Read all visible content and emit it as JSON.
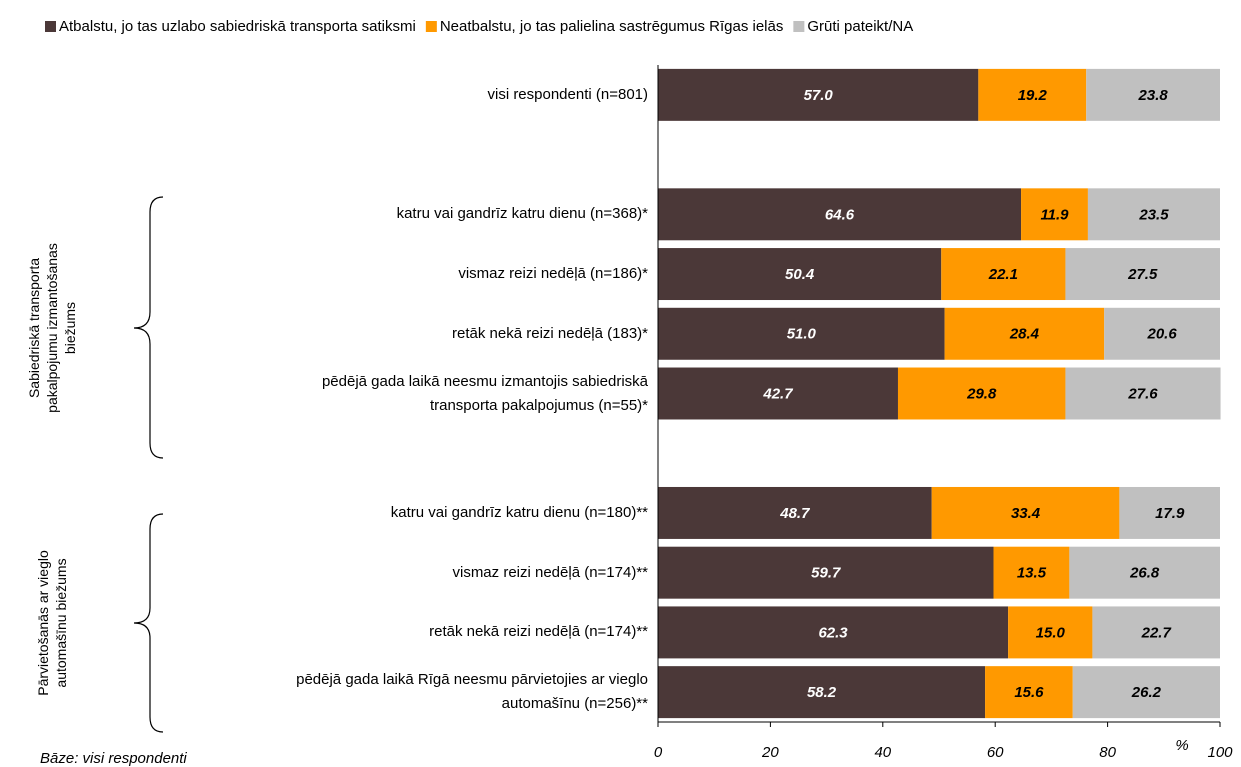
{
  "chart_data": {
    "type": "stacked_barh",
    "categories": [
      "visi respondenti (n=801)",
      null,
      "katru vai gandrīz katru dienu (n=368)*",
      "vismaz reizi nedēļā (n=186)*",
      "retāk nekā reizi nedēļā (183)*",
      "pēdējā gada laikā neesmu izmantojis sabiedriskā\ntransporta pakalpojumus (n=55)*",
      null,
      "katru vai gandrīz katru dienu (n=180)**",
      "vismaz reizi nedēļā (n=174)**",
      "retāk nekā reizi nedēļā (n=174)**",
      "pēdējā gada laikā Rīgā neesmu pārvietojies ar vieglo\nautomašīnu (n=256)**"
    ],
    "groups": [
      "Sabiedriskā transporta\npakalpojumu izmantošanas\nbiežums",
      "Pārvietošanās ar vieglo\nautomašīnu biežums"
    ],
    "series": [
      {
        "name": "Atbalstu, jo tas uzlabo sabiedriskā transporta satiksmi",
        "color": "#4b3838",
        "label_color": "#ffffff",
        "values": [
          57.0,
          null,
          64.6,
          50.4,
          51.0,
          42.7,
          null,
          48.7,
          59.7,
          62.3,
          58.2
        ],
        "value_labels": [
          "57.0",
          null,
          "64.6",
          "50.4",
          "51.0",
          "42.7",
          null,
          "48.7",
          "59.7",
          "62.3",
          "58.2"
        ]
      },
      {
        "name": "Neatbalstu, jo tas palielina sastrēgumus Rīgas ielās",
        "color": "#ff9900",
        "label_color": "#000000",
        "values": [
          19.2,
          null,
          11.9,
          22.1,
          28.4,
          29.8,
          null,
          33.4,
          13.5,
          15.0,
          15.6
        ],
        "value_labels": [
          "19.2",
          null,
          "11.9",
          "22.1",
          "28.4",
          "29.8",
          null,
          "33.4",
          "13.5",
          "15.0",
          "15.6"
        ]
      },
      {
        "name": "Grūti pateikt/NA",
        "color": "#c0c0c0",
        "label_color": "#000000",
        "values": [
          23.8,
          null,
          23.5,
          27.5,
          20.6,
          27.6,
          null,
          17.9,
          26.8,
          22.7,
          26.2
        ],
        "value_labels": [
          "23.8",
          null,
          "23.5",
          "27.5",
          "20.6",
          "27.6",
          null,
          "17.9",
          "26.8",
          "22.7",
          "26.2"
        ]
      }
    ],
    "xlim": [
      0,
      100
    ],
    "xticks": [
      0,
      20,
      40,
      60,
      80,
      100
    ],
    "xlabel": "%",
    "footnote": "Bāze: visi respondenti"
  }
}
